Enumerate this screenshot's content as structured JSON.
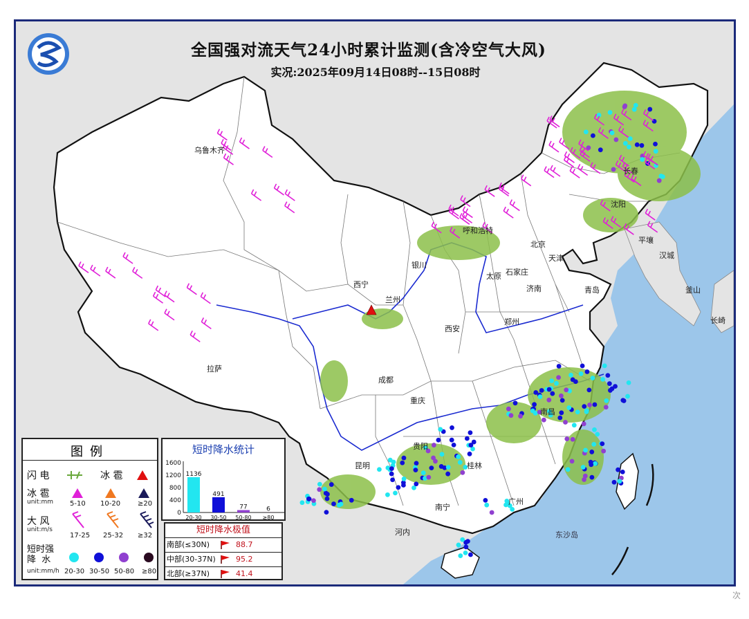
{
  "title": "全国强对流天气24小时累计监测(含冷空气大风)",
  "subtitle": "实况:2025年09月14日08时--15日08时",
  "colors": {
    "land": "#ffffff",
    "sea": "#9cc6ea",
    "rain_area": "#8cc04a",
    "lightning": "#6aa83c",
    "wind_17_25": "#e020d8",
    "wind_25_32": "#f07820",
    "wind_32": "#1a1a5a",
    "rain_20_30": "#22e6f0",
    "rain_30_50": "#1010d8",
    "rain_50_80": "#9040d0",
    "rain_80": "#2a0a20",
    "hail_5_10": "#e020d8",
    "hail_10_20": "#f07820",
    "hail_20": "#1a1a5a",
    "hail_big": "#e01010",
    "river": "#1a2ad0",
    "border": "#111111"
  },
  "cities": [
    {
      "name": "乌鲁木齐",
      "cls": ""
    },
    {
      "name": "呼和浩特",
      "cls": ""
    },
    {
      "name": "西宁",
      "cls": ""
    },
    {
      "name": "兰州",
      "cls": ""
    },
    {
      "name": "银川",
      "cls": ""
    },
    {
      "name": "太原",
      "cls": ""
    },
    {
      "name": "石家庄",
      "cls": ""
    },
    {
      "name": "北京",
      "cls": ""
    },
    {
      "name": "天津",
      "cls": ""
    },
    {
      "name": "济南",
      "cls": ""
    },
    {
      "name": "青岛",
      "cls": ""
    },
    {
      "name": "郑州",
      "cls": ""
    },
    {
      "name": "西安",
      "cls": ""
    },
    {
      "name": "成都",
      "cls": ""
    },
    {
      "name": "重庆",
      "cls": ""
    },
    {
      "name": "拉萨",
      "cls": ""
    },
    {
      "name": "贵阳",
      "cls": ""
    },
    {
      "name": "昆明",
      "cls": ""
    },
    {
      "name": "南宁",
      "cls": ""
    },
    {
      "name": "桂林",
      "cls": ""
    },
    {
      "name": "广州",
      "cls": ""
    },
    {
      "name": "南昌",
      "cls": ""
    },
    {
      "name": "长春",
      "cls": ""
    },
    {
      "name": "沈阳",
      "cls": ""
    },
    {
      "name": "平壤",
      "cls": ""
    },
    {
      "name": "汉城",
      "cls": ""
    },
    {
      "name": "釜山",
      "cls": ""
    },
    {
      "name": "长崎",
      "cls": ""
    },
    {
      "name": "河内",
      "cls": ""
    },
    {
      "name": "东沙岛",
      "cls": "sea"
    }
  ],
  "legend": {
    "title": "图例",
    "lightning": "闪 电",
    "hail_label": "冰 雹",
    "hail_unit": "unit:mm",
    "hail_values": [
      "5-10",
      "10-20",
      "≥20"
    ],
    "wind_label": "大 风",
    "wind_unit": "unit:m/s",
    "wind_values": [
      "17-25",
      "25-32",
      "≥32"
    ],
    "rain_label": "短时强\n降  水",
    "rain_unit": "unit:mm/h",
    "rain_values": [
      "20-30",
      "30-50",
      "50-80",
      "≥80"
    ]
  },
  "stats": {
    "title": "短时降水统计",
    "y_ticks": [
      "0",
      "400",
      "800",
      "1200",
      "1600"
    ],
    "categories": [
      "20-30",
      "30-50",
      "50-80",
      "≥80"
    ],
    "values": [
      1136,
      491,
      77,
      6
    ],
    "colors": [
      "#22e6f0",
      "#1010d8",
      "#9040d0",
      "#2a0a20"
    ],
    "ymax": 1600
  },
  "extreme": {
    "title": "短时降水极值",
    "rows": [
      {
        "region": "南部(≤30N)",
        "value": "88.7"
      },
      {
        "region": "中部(30-37N)",
        "value": "95.2"
      },
      {
        "region": "北部(≥37N)",
        "value": "41.4"
      }
    ]
  },
  "watermark": "次"
}
